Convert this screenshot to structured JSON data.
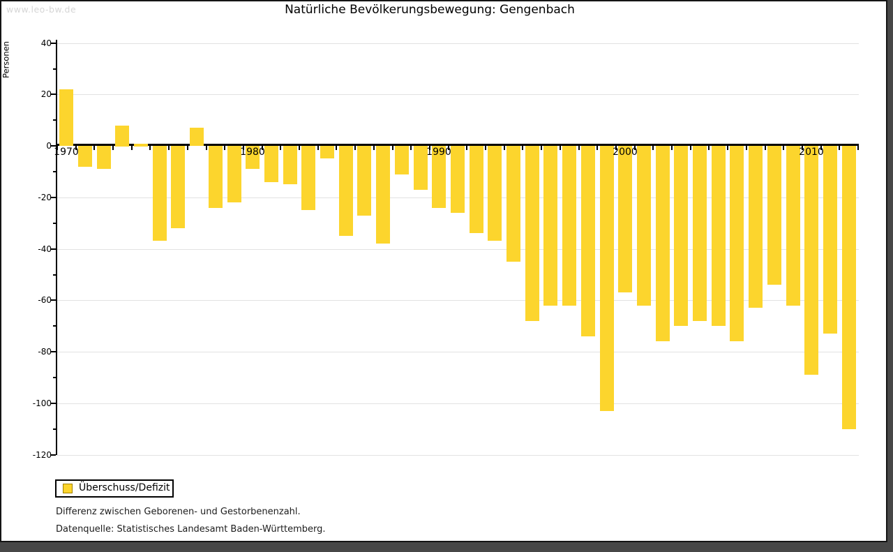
{
  "watermark": "www.leo-bw.de",
  "title": "Natürliche Bevölkerungsbewegung: Gengenbach",
  "legend": {
    "label": "Überschuss/Defizit"
  },
  "footnotes": {
    "line1": "Differenz zwischen Geborenen- und Gestorbenenzahl.",
    "line2": "Datenquelle: Statistisches Landesamt Baden-Württemberg."
  },
  "colors": {
    "bar": "#FCD52D",
    "swatch_border": "#A08000",
    "gridline": "#E2E2E2",
    "axis": "#000000",
    "watermark": "#D6D6D6",
    "frame": "#474747"
  },
  "chart_data": {
    "type": "bar",
    "title": "Natürliche Bevölkerungsbewegung: Gengenbach",
    "xlabel": "",
    "ylabel": "Personen",
    "ylim": [
      -120,
      40
    ],
    "grid": "horizontal-only",
    "gridline_values": [
      40,
      20,
      -20,
      -40,
      -60,
      -80,
      -100,
      -120
    ],
    "y_major_ticks": [
      40,
      20,
      0,
      -20,
      -40,
      -60,
      -80,
      -100,
      -120
    ],
    "y_minor_ticks": [
      30,
      10,
      -10,
      -30,
      -50,
      -70,
      -90,
      -110
    ],
    "x_tick_labels": [
      1970,
      1980,
      1990,
      2000,
      2010
    ],
    "legend_position": "bottom-left",
    "legend_entries": [
      "Überschuss/Defizit"
    ],
    "series": [
      {
        "name": "Überschuss/Defizit",
        "x": [
          1970,
          1971,
          1972,
          1973,
          1974,
          1975,
          1976,
          1977,
          1978,
          1979,
          1980,
          1981,
          1982,
          1983,
          1984,
          1985,
          1986,
          1987,
          1988,
          1989,
          1990,
          1991,
          1992,
          1993,
          1994,
          1995,
          1996,
          1997,
          1998,
          1999,
          2000,
          2001,
          2002,
          2003,
          2004,
          2005,
          2006,
          2007,
          2008,
          2009,
          2010,
          2011,
          2012
        ],
        "values": [
          22,
          -8,
          -9,
          8,
          1,
          -37,
          -32,
          7,
          -24,
          -22,
          -9,
          -14,
          -15,
          -25,
          -5,
          -35,
          -27,
          -38,
          -11,
          -17,
          -24,
          -26,
          -34,
          -37,
          -45,
          -68,
          -62,
          -62,
          -74,
          -103,
          -57,
          -62,
          -76,
          -70,
          -68,
          -70,
          -76,
          -63,
          -54,
          -62,
          -89,
          -73,
          -110
        ]
      }
    ]
  }
}
